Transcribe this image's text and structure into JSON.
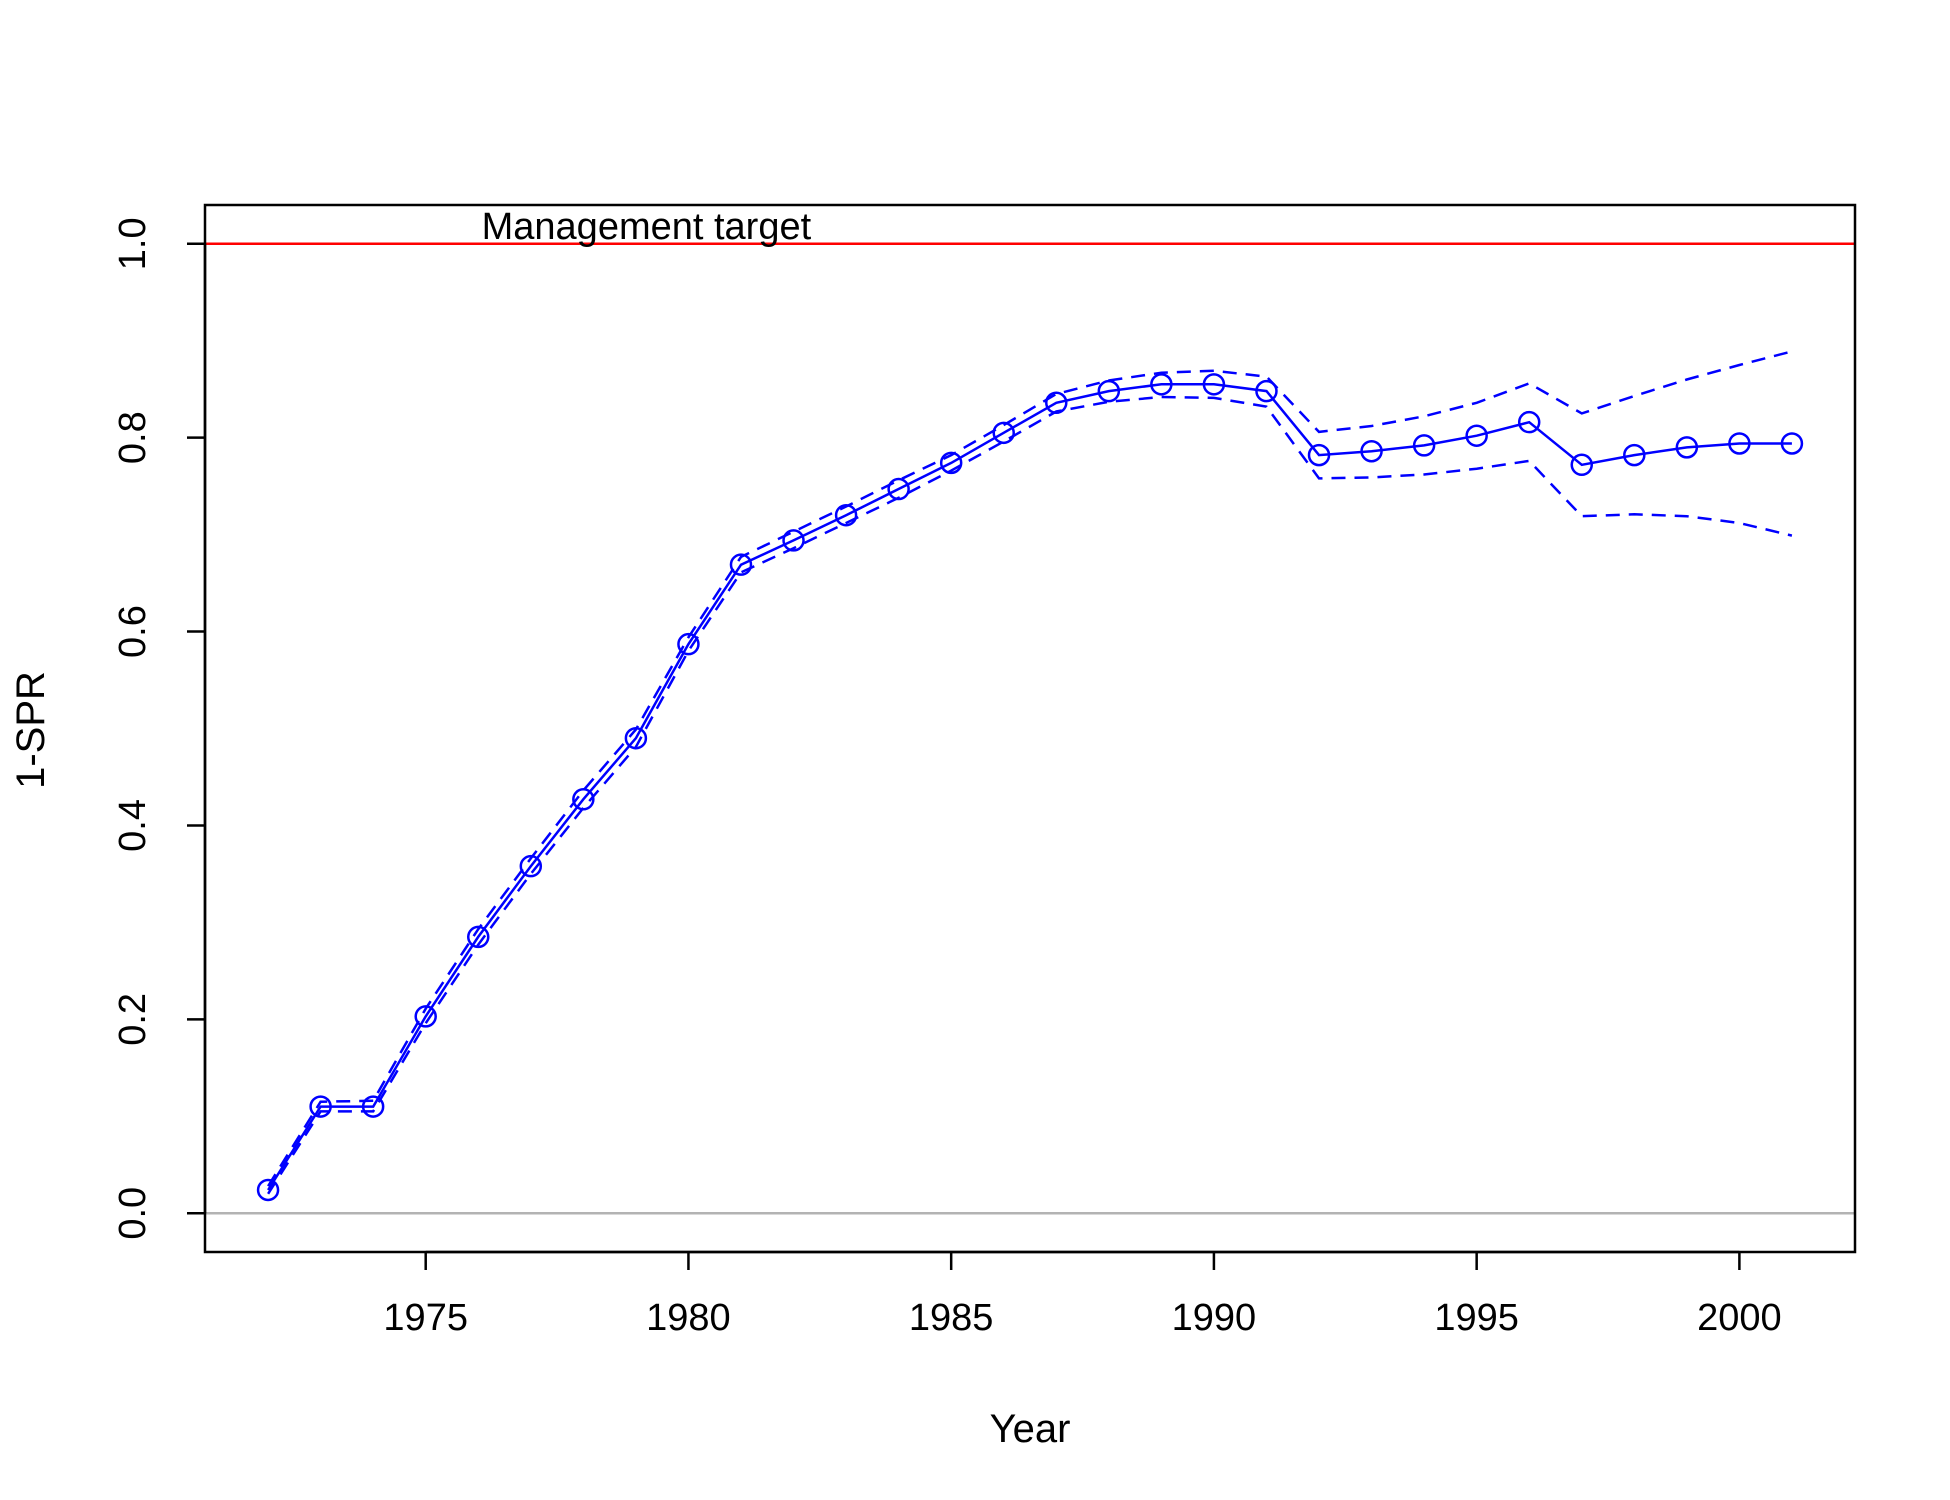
{
  "chart_data": {
    "type": "line",
    "title": "",
    "xlabel": "Year",
    "ylabel": "1-SPR",
    "xlim": [
      1970.8,
      2002.2
    ],
    "ylim": [
      -0.04,
      1.04
    ],
    "xticks": [
      1975,
      1980,
      1985,
      1990,
      1995,
      2000
    ],
    "yticks": [
      0.0,
      0.2,
      0.4,
      0.6,
      0.8,
      1.0
    ],
    "ytick_labels": [
      "0.0",
      "0.2",
      "0.4",
      "0.6",
      "0.8",
      "1.0"
    ],
    "x": [
      1972,
      1973,
      1974,
      1975,
      1976,
      1977,
      1978,
      1979,
      1980,
      1981,
      1982,
      1983,
      1984,
      1985,
      1986,
      1987,
      1988,
      1989,
      1990,
      1991,
      1992,
      1993,
      1994,
      1995,
      1996,
      1997,
      1998,
      1999,
      2000,
      2001
    ],
    "series": [
      {
        "role": "estimate",
        "style": "solid-with-open-circles",
        "values": [
          0.024,
          0.11,
          0.11,
          0.203,
          0.285,
          0.358,
          0.427,
          0.49,
          0.587,
          0.669,
          0.694,
          0.72,
          0.747,
          0.774,
          0.805,
          0.836,
          0.848,
          0.855,
          0.855,
          0.848,
          0.782,
          0.786,
          0.792,
          0.802,
          0.816,
          0.772,
          0.782,
          0.79,
          0.794,
          0.794
        ]
      },
      {
        "role": "upper-interval",
        "style": "dashed",
        "values": [
          0.028,
          0.115,
          0.116,
          0.211,
          0.293,
          0.366,
          0.436,
          0.499,
          0.594,
          0.677,
          0.703,
          0.729,
          0.756,
          0.782,
          0.813,
          0.845,
          0.859,
          0.867,
          0.869,
          0.863,
          0.806,
          0.812,
          0.822,
          0.836,
          0.856,
          0.825,
          0.843,
          0.86,
          0.875,
          0.889
        ]
      },
      {
        "role": "lower-interval",
        "style": "dashed",
        "values": [
          0.02,
          0.105,
          0.105,
          0.196,
          0.277,
          0.35,
          0.418,
          0.481,
          0.58,
          0.661,
          0.686,
          0.712,
          0.738,
          0.766,
          0.796,
          0.827,
          0.837,
          0.842,
          0.841,
          0.832,
          0.758,
          0.759,
          0.762,
          0.768,
          0.776,
          0.719,
          0.721,
          0.719,
          0.712,
          0.699
        ]
      }
    ],
    "reference_lines": [
      {
        "y": 1.0,
        "color": "#ff0000",
        "label": "Management target",
        "label_x": 1979.2
      },
      {
        "y": 0.0,
        "color": "#b3b3b3"
      }
    ],
    "series_color": "#0000ff",
    "grid": false,
    "legend": "none"
  }
}
